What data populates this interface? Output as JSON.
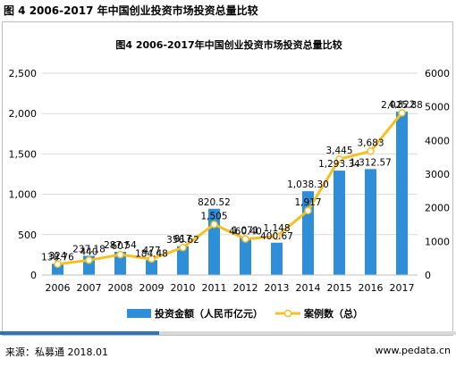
{
  "header": {
    "title": "图 4 2006-2017 年中国创业投资市场投资总量比较"
  },
  "footer": {
    "source": "来源：私募通 2018.01",
    "site": "www.pedata.cn"
  },
  "colors": {
    "bar": "#2e8fd8",
    "line": "#f5c024",
    "marker_fill": "#ffffff"
  },
  "chart_data": {
    "type": "bar+line",
    "title": "图4 2006-2017年中国创业投资市场投资总量比较",
    "categories": [
      "2006",
      "2007",
      "2008",
      "2009",
      "2010",
      "2011",
      "2012",
      "2013",
      "2014",
      "2015",
      "2016",
      "2017"
    ],
    "series": [
      {
        "name": "投资金额（人民币亿元）",
        "type": "bar",
        "axis": "left",
        "values": [
          138.76,
          237.18,
          287.54,
          184.48,
          356.62,
          820.52,
          460.4,
          400.67,
          1038.3,
          1293.34,
          1312.57,
          2025.88
        ],
        "labels": [
          "138.76",
          "237.18",
          "287.54",
          "184.48",
          "356.62",
          "820.52",
          "460.40",
          "400.67",
          "1,038.30",
          "1,293.34",
          "1,312.57",
          "2,025.88"
        ]
      },
      {
        "name": "案例数（总）",
        "type": "line",
        "axis": "right",
        "values": [
          324,
          440,
          607,
          477,
          817,
          1505,
          1071,
          1148,
          1917,
          3445,
          3683,
          4822
        ],
        "labels": [
          "324",
          "440",
          "607",
          "477",
          "817",
          "1,505",
          "1,071",
          "1,148",
          "1,917",
          "3,445",
          "3,683",
          "4,822"
        ]
      }
    ],
    "y_left": {
      "min": 0,
      "max": 2500,
      "ticks": [
        0,
        500,
        1000,
        1500,
        2000,
        2500
      ],
      "tick_labels": [
        "0",
        "500",
        "1,000",
        "1,500",
        "2,000",
        "2,500"
      ]
    },
    "y_right": {
      "min": 0,
      "max": 6000,
      "ticks": [
        0,
        1000,
        2000,
        3000,
        4000,
        5000,
        6000
      ],
      "tick_labels": [
        "0",
        "1000",
        "2000",
        "3000",
        "4000",
        "5000",
        "6000"
      ]
    },
    "grid": true,
    "legend_position": "bottom"
  }
}
